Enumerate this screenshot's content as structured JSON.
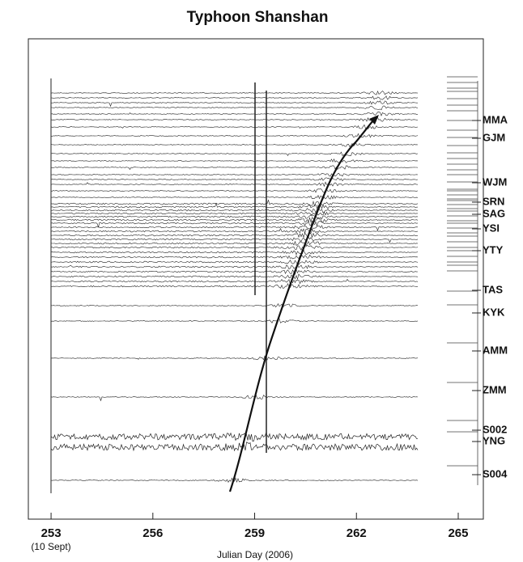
{
  "chart_data": {
    "type": "seismogram",
    "title": "Typhoon Shanshan",
    "xlabel": "Julian Day (2006)",
    "xlim": [
      252.33,
      265.74
    ],
    "xticks": [
      253,
      256,
      259,
      262,
      265
    ],
    "annotation": "(10 Sept)",
    "stations": [
      "MMA",
      "GJM",
      "WJM",
      "SRN",
      "SAG",
      "YSI",
      "YTY",
      "TAS",
      "KYK",
      "AMM",
      "ZMM",
      "S002",
      "YNG",
      "S004"
    ]
  }
}
